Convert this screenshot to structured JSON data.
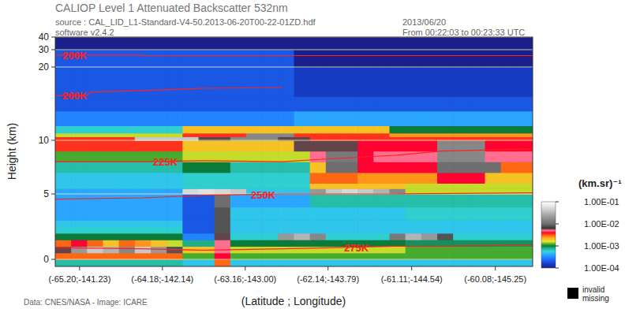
{
  "chart_data": {
    "type": "heatmap",
    "title": "CALIOP Level 1 Attenuated Backscatter 532nm",
    "annotations": [
      "source : CAL_LID_L1-Standard-V4-50.2013-06-20T00-22-01ZD.hdf",
      "software v2.4.2",
      "2013/06/20",
      "From 00:22:03 to 00:23:33 UTC",
      "Data: CNES/NASA - Image: ICARE"
    ],
    "xlabel": "(Latitude ; Longitude)",
    "ylabel": "Height (km)",
    "xlim": [
      -65.5,
      -59.62
    ],
    "xticks": [
      {
        "value": -65.2,
        "label": "(-65.20;-141.23)"
      },
      {
        "value": -64.18,
        "label": "(-64.18;-142.14)"
      },
      {
        "value": -63.16,
        "label": "(-63.16;-143.00)"
      },
      {
        "value": -62.14,
        "label": "(-62.14;-143.79)"
      },
      {
        "value": -61.11,
        "label": "(-61.11;-144.54)"
      },
      {
        "value": -60.08,
        "label": "(-60.08;-145.25)"
      }
    ],
    "ylim": [
      -0.5,
      40
    ],
    "yticks": [
      0,
      5,
      10,
      20,
      30,
      40
    ],
    "grid": true,
    "x_edges": [
      -65.5,
      -65.304,
      -65.108,
      -64.912,
      -64.716,
      -64.52,
      -64.324,
      -64.128,
      -63.932,
      -63.736,
      -63.54,
      -63.344,
      -63.148,
      -62.952,
      -62.756,
      -62.56,
      -62.364,
      -62.168,
      -61.972,
      -61.776,
      -61.58,
      -61.384,
      -61.188,
      -60.992,
      -60.796,
      -60.6,
      -60.404,
      -60.208,
      -60.012,
      -59.816,
      -59.62
    ],
    "y_edges": [
      -0.5,
      0,
      0.5,
      1,
      1.5,
      2,
      2.5,
      3,
      4,
      5,
      5.5,
      6,
      7,
      8,
      9,
      10,
      10.5,
      11,
      12,
      14,
      16,
      20,
      30,
      40
    ],
    "cells": [
      [
        0.0007,
        0.0007,
        0.0007,
        0.0007,
        0.0007,
        0.0007,
        0.0007,
        0.0007,
        0.0005,
        0.0005,
        0.003,
        0.0005,
        0.0005,
        0.0005,
        0.0005,
        0.0005,
        0.0005,
        0.0005,
        0.0005,
        0.0005,
        0.0005,
        0.0005,
        0.0005,
        0.0005,
        0.0005,
        0.0005,
        0.0005,
        0.0005,
        0.0005,
        0.0005
      ],
      [
        0.003,
        0.003,
        0.003,
        0.003,
        0.003,
        0.003,
        0.003,
        0.003,
        0.0012,
        0.0012,
        0.004,
        0.0012,
        0.0012,
        0.0012,
        0.0012,
        0.0012,
        0.0012,
        0.0012,
        0.0012,
        0.0012,
        0.0012,
        0.0012,
        0.0012,
        0.0012,
        0.0012,
        0.0012,
        0.0012,
        0.0012,
        0.0012,
        0.0012
      ],
      [
        0.006,
        0.02,
        0.04,
        0.03,
        0.015,
        0.04,
        0.02,
        0.008,
        0.002,
        0.002,
        0.005,
        0.0015,
        0.0015,
        0.0015,
        0.0015,
        0.0015,
        0.0015,
        0.0015,
        0.0015,
        0.0015,
        0.0015,
        0.0015,
        0.0012,
        0.0012,
        0.0012,
        0.0012,
        0.0012,
        0.0012,
        0.0012,
        0.0012
      ],
      [
        0.003,
        0.004,
        0.003,
        0.002,
        0.003,
        0.0025,
        0.002,
        0.0015,
        0.0008,
        0.0008,
        0.005,
        0.001,
        0.001,
        0.001,
        0.001,
        0.001,
        0.001,
        0.001,
        0.001,
        0.001,
        0.001,
        0.001,
        0.0009,
        0.0009,
        0.0009,
        0.0009,
        0.0009,
        0.0009,
        0.0009,
        0.0009
      ],
      [
        0.001,
        0.001,
        0.001,
        0.001,
        0.001,
        0.001,
        0.001,
        0.001,
        0.0003,
        0.0003,
        0.006,
        0.0006,
        0.0006,
        0.0006,
        0.02,
        0.03,
        0.015,
        0.0006,
        0.0006,
        0.0006,
        0.0006,
        0.012,
        0.03,
        0.02,
        0.008,
        0.0006,
        0.0006,
        0.0006,
        0.0006,
        0.0006
      ],
      [
        0.0006,
        0.0006,
        0.0006,
        0.0006,
        0.0006,
        0.0006,
        0.0006,
        0.0006,
        0.0002,
        0.0002,
        0.008,
        0.0005,
        0.0005,
        0.0005,
        0.0005,
        0.0005,
        0.0005,
        0.0005,
        0.0005,
        0.0005,
        0.0005,
        0.0005,
        0.0005,
        0.0005,
        0.0005,
        0.0005,
        0.0005,
        0.0005,
        0.0005,
        0.0005
      ],
      [
        0.0005,
        0.0005,
        0.0005,
        0.0005,
        0.0005,
        0.0005,
        0.0005,
        0.0005,
        0.0002,
        0.0002,
        0.008,
        0.0005,
        0.0005,
        0.0005,
        0.0005,
        0.0005,
        0.0005,
        0.0005,
        0.0005,
        0.0005,
        0.0005,
        0.0005,
        0.0005,
        0.0005,
        0.0005,
        0.0005,
        0.0005,
        0.0005,
        0.0005,
        0.0005
      ],
      [
        0.0004,
        0.0004,
        0.0004,
        0.0004,
        0.0004,
        0.0004,
        0.0004,
        0.0004,
        0.0002,
        0.0002,
        0.008,
        0.0005,
        0.0005,
        0.0005,
        0.0005,
        0.0005,
        0.0005,
        0.0005,
        0.0005,
        0.0005,
        0.0005,
        0.0005,
        0.0006,
        0.0006,
        0.0006,
        0.0006,
        0.0006,
        0.0006,
        0.0006,
        0.0006
      ],
      [
        0.0004,
        0.0004,
        0.0004,
        0.0004,
        0.0004,
        0.0004,
        0.0004,
        0.0004,
        0.0002,
        0.0002,
        0.01,
        0.0004,
        0.0004,
        0.0004,
        0.0004,
        0.0004,
        0.0007,
        0.0007,
        0.0007,
        0.0007,
        0.0007,
        0.0007,
        0.0007,
        0.0007,
        0.0007,
        0.0007,
        0.0007,
        0.0007,
        0.0007,
        0.0007
      ],
      [
        0.0004,
        0.0004,
        0.0004,
        0.0004,
        0.0004,
        0.0004,
        0.0004,
        0.0004,
        0.05,
        0.06,
        0.05,
        0.04,
        0.0005,
        0.0005,
        0.0005,
        0.0005,
        0.02,
        0.04,
        0.05,
        0.04,
        0.03,
        0.015,
        0.0015,
        0.0015,
        0.0015,
        0.0015,
        0.0015,
        0.0015,
        0.0015,
        0.0015
      ],
      [
        0.0005,
        0.0005,
        0.0005,
        0.0005,
        0.0005,
        0.0005,
        0.0005,
        0.0005,
        0.0006,
        0.0006,
        0.0006,
        0.0006,
        0.0006,
        0.0006,
        0.0006,
        0.0006,
        0.002,
        0.002,
        0.002,
        0.002,
        0.002,
        0.002,
        0.0015,
        0.0015,
        0.0015,
        0.0015,
        0.0015,
        0.0015,
        0.0015,
        0.0015
      ],
      [
        0.0005,
        0.0005,
        0.0005,
        0.0005,
        0.0005,
        0.0005,
        0.0005,
        0.0005,
        0.0006,
        0.0006,
        0.0006,
        0.0006,
        0.0006,
        0.0006,
        0.0006,
        0.0006,
        0.003,
        0.003,
        0.003,
        0.0025,
        0.0025,
        0.0025,
        0.0025,
        0.0025,
        0.004,
        0.004,
        0.004,
        0.002,
        0.002,
        0.002
      ],
      [
        0.0007,
        0.0007,
        0.0007,
        0.0007,
        0.0007,
        0.0007,
        0.0007,
        0.0007,
        0.001,
        0.001,
        0.001,
        0.0007,
        0.0007,
        0.0007,
        0.0007,
        0.0007,
        0.002,
        0.01,
        0.01,
        0.004,
        0.004,
        0.004,
        0.004,
        0.004,
        0.01,
        0.01,
        0.01,
        0.01,
        0.003,
        0.003
      ],
      [
        0.0012,
        0.0012,
        0.0012,
        0.0012,
        0.0012,
        0.0012,
        0.0012,
        0.0012,
        0.0015,
        0.0015,
        0.0015,
        0.0015,
        0.0015,
        0.0015,
        0.0015,
        0.0015,
        0.005,
        0.012,
        0.012,
        0.004,
        0.005,
        0.005,
        0.005,
        0.005,
        0.015,
        0.015,
        0.015,
        0.005,
        0.005,
        0.005
      ],
      [
        0.0035,
        0.0035,
        0.0035,
        0.0035,
        0.0035,
        0.0035,
        0.0035,
        0.0035,
        0.002,
        0.002,
        0.002,
        0.002,
        0.002,
        0.002,
        0.002,
        0.006,
        0.006,
        0.006,
        0.006,
        0.004,
        0.004,
        0.004,
        0.004,
        0.004,
        0.015,
        0.015,
        0.015,
        0.004,
        0.004,
        0.004
      ],
      [
        0.0035,
        0.0035,
        0.0035,
        0.0035,
        0.0035,
        0.04,
        0.04,
        0.04,
        0.04,
        0.006,
        0.006,
        0.015,
        0.015,
        0.015,
        0.006,
        0.006,
        0.0035,
        0.0035,
        0.0035,
        0.0035,
        0.0035,
        0.0035,
        0.0035,
        0.0035,
        0.0035,
        0.0035,
        0.0035,
        0.0035,
        0.0035,
        0.0035
      ],
      [
        0.0015,
        0.0015,
        0.0015,
        0.0015,
        0.0015,
        0.0015,
        0.0015,
        0.0015,
        0.0035,
        0.0035,
        0.0035,
        0.0035,
        0.015,
        0.015,
        0.015,
        0.0035,
        0.0035,
        0.0035,
        0.0035,
        0.0035,
        0.0035,
        0.0025,
        0.0025,
        0.0025,
        0.0025,
        0.0025,
        0.0025,
        0.0025,
        0.0025,
        0.0025
      ],
      [
        0.0006,
        0.0006,
        0.0006,
        0.0006,
        0.0006,
        0.0006,
        0.0006,
        0.0006,
        0.002,
        0.002,
        0.002,
        0.002,
        0.002,
        0.002,
        0.002,
        0.002,
        0.002,
        0.002,
        0.002,
        0.002,
        0.002,
        0.001,
        0.001,
        0.001,
        0.001,
        0.001,
        0.001,
        0.001,
        0.001,
        0.001
      ],
      [
        0.0003,
        0.0003,
        0.0003,
        0.0003,
        0.0003,
        0.0003,
        0.0003,
        0.0003,
        0.0003,
        0.0003,
        0.0003,
        0.0003,
        0.0003,
        0.0003,
        0.0003,
        0.0004,
        0.0004,
        0.0004,
        0.0004,
        0.0004,
        0.0004,
        0.0004,
        0.0004,
        0.0004,
        0.0004,
        0.0004,
        0.0004,
        0.0004,
        0.0004,
        0.0004
      ],
      [
        0.0002,
        0.0002,
        0.0002,
        0.0002,
        0.0002,
        0.0002,
        0.0002,
        0.0002,
        0.0002,
        0.0002,
        0.0002,
        0.0002,
        0.0002,
        0.0002,
        0.0002,
        0.0002,
        0.0002,
        0.0002,
        0.0002,
        0.0002,
        0.0002,
        0.0002,
        0.0002,
        0.0002,
        0.0002,
        0.0002,
        0.0002,
        0.0002,
        0.0002,
        0.0002
      ],
      [
        0.0002,
        0.0002,
        0.0002,
        0.0002,
        0.0002,
        0.0002,
        0.0002,
        0.0002,
        0.0002,
        0.0002,
        0.0002,
        0.0002,
        0.0002,
        0.0002,
        0.0002,
        0.00015,
        0.00015,
        0.00015,
        0.00015,
        0.00015,
        0.00015,
        0.00015,
        0.00015,
        0.00015,
        0.00015,
        0.00015,
        0.00015,
        0.00015,
        0.00015,
        0.00015
      ],
      [
        0.0002,
        0.0002,
        0.0002,
        0.0002,
        0.0002,
        0.0002,
        0.0002,
        0.0002,
        0.0002,
        0.0002,
        0.0002,
        0.0002,
        0.0002,
        0.0002,
        0.0002,
        0.0001,
        0.0001,
        0.0001,
        0.0001,
        0.0001,
        0.0001,
        0.0001,
        0.0001,
        0.0001,
        0.0001,
        0.0001,
        0.0001,
        0.0001,
        0.0001,
        0.0001
      ],
      [
        0.0001,
        0.0001,
        0.0001,
        0.0001,
        0.0001,
        0.0001,
        0.0001,
        0.0001,
        0.0001,
        0.0001,
        0.0001,
        0.0001,
        0.0001,
        0.0001,
        0.0001,
        0.0001,
        0.0001,
        0.0001,
        0.0001,
        0.0001,
        0.0001,
        0.0001,
        0.0001,
        0.0001,
        0.0001,
        0.0001,
        0.0001,
        0.0001,
        0.0001,
        0.0001
      ]
    ],
    "colorbar": {
      "label": "(km.sr)⁻¹",
      "log": true,
      "range": [
        0.0001,
        0.1
      ],
      "ticks": [
        {
          "value": 0.1,
          "label": "1.00E-01"
        },
        {
          "value": 0.01,
          "label": "1.00E-02"
        },
        {
          "value": 0.001,
          "label": "1.00E-03"
        },
        {
          "value": 0.0001,
          "label": "1.00E-04"
        }
      ]
    },
    "isotherms": [
      {
        "name": "200K",
        "color": "#ff2020",
        "lat": [
          -65.5,
          -64.43,
          -64.4,
          -59.62
        ],
        "altitude": [
          26.9,
          26.9,
          26.6,
          26.6
        ]
      },
      {
        "name": "200K",
        "color": "#ff2020",
        "lat": [
          -65.5,
          -65.11,
          -65.06,
          -64.43,
          -63.65,
          -62.7
        ],
        "altitude": [
          16.1,
          16.1,
          16.6,
          16.8,
          17.1,
          17.2
        ]
      },
      {
        "name": "225K",
        "color": "#ff2020",
        "lat": [
          -65.5,
          -64.43,
          -63.65,
          -62.7,
          -62.29,
          -61.32,
          -60.74,
          -59.62
        ],
        "altitude": [
          8.0,
          8.0,
          8.1,
          8.0,
          8.2,
          8.6,
          9.0,
          9.2
        ]
      },
      {
        "name": "250K",
        "color": "#ff2020",
        "lat": [
          -65.5,
          -64.43,
          -63.65,
          -62.7,
          -61.32,
          -59.62
        ],
        "altitude": [
          4.6,
          4.7,
          4.9,
          5.0,
          5.0,
          5.1
        ]
      },
      {
        "name": "275K",
        "color": "#ff2020",
        "lat": [
          -65.5,
          -64.43,
          -63.65,
          -62.7,
          -61.32,
          -60.74,
          -59.62
        ],
        "altitude": [
          0.9,
          0.8,
          0.7,
          0.8,
          1.0,
          1.0,
          1.1
        ]
      }
    ],
    "missing_legend": [
      "invalid",
      "missing"
    ]
  }
}
